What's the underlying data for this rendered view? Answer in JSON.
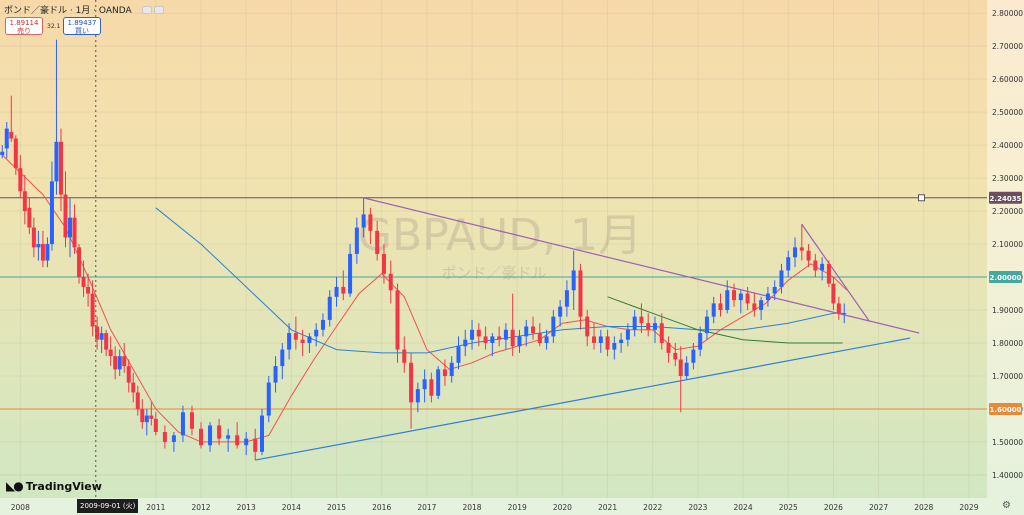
{
  "header": {
    "symbol_text": "ポンド／豪ドル · 1月 · OANDA",
    "sell": {
      "price": "1.89114",
      "label": "売り"
    },
    "buy": {
      "price": "1.89437",
      "label": "買い"
    },
    "spread": "32.1"
  },
  "logo": "TradingView",
  "crosshair_date": "2009-09-01 (火)",
  "watermark": {
    "main": "GBPAUD, 1月",
    "sub": "ポンド／豪ドル"
  },
  "colors": {
    "up": "#2962ff",
    "down": "#f23645",
    "ma_fast": "#ef5350",
    "ma_mid": "#2e7d32",
    "ma_slow": "#2f7fd6",
    "trend_purple": "#9c5fb5",
    "trend_blue": "#2f7fd6",
    "support_line": "#e8893a",
    "resistance_line": "#6b4f5f",
    "level_2_line": "#43a8a0"
  },
  "chart_data": {
    "type": "candlestick",
    "timeframe": "monthly",
    "ylim": [
      1.33,
      2.84
    ],
    "xlim": [
      2007.55,
      2029.4
    ],
    "y_ticks": [
      "1.40000",
      "1.50000",
      "1.60000",
      "1.70000",
      "1.80000",
      "1.90000",
      "2.00000",
      "2.10000",
      "2.20000",
      "2.30000",
      "2.40000",
      "2.50000",
      "2.60000",
      "2.70000",
      "2.80000"
    ],
    "x_ticks": [
      {
        "label": "2008",
        "x": 2008.0
      },
      {
        "label": "2011",
        "x": 2011.0
      },
      {
        "label": "2012",
        "x": 2012.0
      },
      {
        "label": "2013",
        "x": 2013.0
      },
      {
        "label": "2014",
        "x": 2014.0
      },
      {
        "label": "2015",
        "x": 2015.0
      },
      {
        "label": "2016",
        "x": 2016.0
      },
      {
        "label": "2017",
        "x": 2017.0
      },
      {
        "label": "2018",
        "x": 2018.0
      },
      {
        "label": "2019",
        "x": 2019.0
      },
      {
        "label": "2020",
        "x": 2020.0
      },
      {
        "label": "2021",
        "x": 2021.0
      },
      {
        "label": "2022",
        "x": 2022.0
      },
      {
        "label": "2023",
        "x": 2023.0
      },
      {
        "label": "2024",
        "x": 2024.0
      },
      {
        "label": "2025",
        "x": 2025.0
      },
      {
        "label": "2026",
        "x": 2026.0
      },
      {
        "label": "2027",
        "x": 2027.0
      },
      {
        "label": "2028",
        "x": 2028.0
      },
      {
        "label": "2029",
        "x": 2029.0
      }
    ],
    "crosshair_x": 2009.67,
    "horizontal_levels": [
      {
        "value": 2.24035,
        "label": "2.24035",
        "color": "#6b4f5f"
      },
      {
        "value": 2.0,
        "label": "2.00000",
        "color": "#43a8a0"
      },
      {
        "value": 1.6,
        "label": "1.60000",
        "color": "#e8893a"
      }
    ],
    "trend_lines": [
      {
        "name": "upper",
        "color": "#9c5fb5",
        "points": [
          [
            2015.6,
            2.24
          ],
          [
            2027.9,
            1.83
          ]
        ]
      },
      {
        "name": "lower",
        "color": "#2f7fd6",
        "points": [
          [
            2013.2,
            1.445
          ],
          [
            2027.7,
            1.815
          ]
        ]
      },
      {
        "name": "recent",
        "color": "#9c5fb5",
        "points": [
          [
            2025.3,
            2.16
          ],
          [
            2026.8,
            1.865
          ]
        ]
      }
    ],
    "moving_averages": [
      {
        "name": "fast",
        "color": "#ef5350",
        "points": [
          [
            2007.6,
            2.37
          ],
          [
            2008.5,
            2.25
          ],
          [
            2009.0,
            2.15
          ],
          [
            2009.5,
            2.0
          ],
          [
            2010.0,
            1.84
          ],
          [
            2010.5,
            1.72
          ],
          [
            2011.0,
            1.6
          ],
          [
            2011.5,
            1.53
          ],
          [
            2012.0,
            1.5
          ],
          [
            2012.5,
            1.5
          ],
          [
            2013.0,
            1.5
          ],
          [
            2013.5,
            1.52
          ],
          [
            2014.0,
            1.64
          ],
          [
            2014.5,
            1.75
          ],
          [
            2015.0,
            1.85
          ],
          [
            2015.5,
            1.95
          ],
          [
            2016.0,
            2.01
          ],
          [
            2016.5,
            1.94
          ],
          [
            2017.0,
            1.78
          ],
          [
            2017.5,
            1.72
          ],
          [
            2018.0,
            1.74
          ],
          [
            2018.5,
            1.77
          ],
          [
            2019.0,
            1.79
          ],
          [
            2019.5,
            1.81
          ],
          [
            2020.0,
            1.86
          ],
          [
            2020.5,
            1.87
          ],
          [
            2021.0,
            1.85
          ],
          [
            2021.5,
            1.84
          ],
          [
            2022.0,
            1.84
          ],
          [
            2022.5,
            1.78
          ],
          [
            2023.0,
            1.79
          ],
          [
            2023.5,
            1.84
          ],
          [
            2024.0,
            1.88
          ],
          [
            2024.5,
            1.92
          ],
          [
            2025.0,
            1.99
          ],
          [
            2025.5,
            2.04
          ],
          [
            2026.0,
            2.0
          ],
          [
            2026.3,
            1.96
          ]
        ]
      },
      {
        "name": "slow",
        "color": "#2f7fd6",
        "points": [
          [
            2011.0,
            2.21
          ],
          [
            2012.0,
            2.1
          ],
          [
            2013.0,
            1.97
          ],
          [
            2014.0,
            1.84
          ],
          [
            2015.0,
            1.78
          ],
          [
            2016.0,
            1.77
          ],
          [
            2017.0,
            1.77
          ],
          [
            2018.0,
            1.8
          ],
          [
            2019.0,
            1.82
          ],
          [
            2020.0,
            1.84
          ],
          [
            2021.0,
            1.85
          ],
          [
            2022.0,
            1.85
          ],
          [
            2023.0,
            1.84
          ],
          [
            2024.0,
            1.84
          ],
          [
            2025.0,
            1.86
          ],
          [
            2026.0,
            1.89
          ],
          [
            2026.2,
            1.89
          ]
        ]
      },
      {
        "name": "mid",
        "color": "#2e7d32",
        "points": [
          [
            2021.0,
            1.94
          ],
          [
            2022.0,
            1.89
          ],
          [
            2023.0,
            1.84
          ],
          [
            2024.0,
            1.81
          ],
          [
            2025.0,
            1.8
          ],
          [
            2026.0,
            1.8
          ],
          [
            2026.2,
            1.8
          ]
        ]
      }
    ],
    "candles": [
      [
        2007.6,
        2.37,
        2.4,
        2.36,
        2.38
      ],
      [
        2007.7,
        2.39,
        2.47,
        2.36,
        2.45
      ],
      [
        2007.8,
        2.44,
        2.55,
        2.41,
        2.42
      ],
      [
        2007.9,
        2.42,
        2.43,
        2.31,
        2.33
      ],
      [
        2008.0,
        2.33,
        2.37,
        2.24,
        2.26
      ],
      [
        2008.1,
        2.26,
        2.31,
        2.16,
        2.2
      ],
      [
        2008.2,
        2.21,
        2.24,
        2.13,
        2.15
      ],
      [
        2008.3,
        2.15,
        2.18,
        2.06,
        2.09
      ],
      [
        2008.4,
        2.09,
        2.14,
        2.05,
        2.1
      ],
      [
        2008.5,
        2.1,
        2.14,
        2.03,
        2.05
      ],
      [
        2008.6,
        2.05,
        2.12,
        2.03,
        2.1
      ],
      [
        2008.7,
        2.1,
        2.35,
        2.08,
        2.29
      ],
      [
        2008.8,
        2.29,
        2.72,
        2.25,
        2.41
      ],
      [
        2008.9,
        2.41,
        2.45,
        2.2,
        2.25
      ],
      [
        2009.0,
        2.25,
        2.32,
        2.09,
        2.12
      ],
      [
        2009.1,
        2.12,
        2.24,
        2.06,
        2.18
      ],
      [
        2009.2,
        2.18,
        2.22,
        2.07,
        2.09
      ],
      [
        2009.3,
        2.09,
        2.1,
        1.98,
        2.0
      ],
      [
        2009.4,
        2.0,
        2.05,
        1.94,
        1.97
      ],
      [
        2009.5,
        1.97,
        2.01,
        1.91,
        1.95
      ],
      [
        2009.6,
        1.95,
        1.99,
        1.82,
        1.85
      ],
      [
        2009.7,
        1.85,
        1.88,
        1.78,
        1.81
      ],
      [
        2009.8,
        1.81,
        1.85,
        1.77,
        1.83
      ],
      [
        2009.9,
        1.83,
        1.84,
        1.76,
        1.78
      ],
      [
        2010.0,
        1.78,
        1.82,
        1.73,
        1.76
      ],
      [
        2010.1,
        1.76,
        1.79,
        1.69,
        1.72
      ],
      [
        2010.2,
        1.72,
        1.78,
        1.7,
        1.76
      ],
      [
        2010.3,
        1.76,
        1.8,
        1.71,
        1.73
      ],
      [
        2010.4,
        1.73,
        1.75,
        1.65,
        1.68
      ],
      [
        2010.5,
        1.68,
        1.71,
        1.62,
        1.65
      ],
      [
        2010.6,
        1.65,
        1.67,
        1.58,
        1.6
      ],
      [
        2010.7,
        1.6,
        1.63,
        1.54,
        1.56
      ],
      [
        2010.8,
        1.56,
        1.6,
        1.52,
        1.58
      ],
      [
        2010.9,
        1.58,
        1.62,
        1.55,
        1.57
      ],
      [
        2011.0,
        1.57,
        1.59,
        1.52,
        1.53
      ],
      [
        2011.2,
        1.53,
        1.55,
        1.48,
        1.5
      ],
      [
        2011.4,
        1.5,
        1.53,
        1.47,
        1.52
      ],
      [
        2011.6,
        1.52,
        1.61,
        1.5,
        1.59
      ],
      [
        2011.8,
        1.59,
        1.61,
        1.52,
        1.54
      ],
      [
        2012.0,
        1.54,
        1.56,
        1.48,
        1.49
      ],
      [
        2012.2,
        1.49,
        1.56,
        1.47,
        1.55
      ],
      [
        2012.4,
        1.55,
        1.57,
        1.49,
        1.51
      ],
      [
        2012.6,
        1.51,
        1.54,
        1.47,
        1.52
      ],
      [
        2012.8,
        1.52,
        1.56,
        1.48,
        1.49
      ],
      [
        2013.0,
        1.49,
        1.53,
        1.46,
        1.51
      ],
      [
        2013.2,
        1.51,
        1.54,
        1.445,
        1.47
      ],
      [
        2013.35,
        1.47,
        1.6,
        1.46,
        1.58
      ],
      [
        2013.5,
        1.58,
        1.7,
        1.56,
        1.68
      ],
      [
        2013.65,
        1.68,
        1.76,
        1.65,
        1.73
      ],
      [
        2013.8,
        1.73,
        1.8,
        1.69,
        1.78
      ],
      [
        2013.95,
        1.78,
        1.86,
        1.75,
        1.83
      ],
      [
        2014.1,
        1.83,
        1.88,
        1.78,
        1.81
      ],
      [
        2014.25,
        1.81,
        1.84,
        1.76,
        1.8
      ],
      [
        2014.4,
        1.8,
        1.83,
        1.77,
        1.82
      ],
      [
        2014.55,
        1.82,
        1.86,
        1.79,
        1.84
      ],
      [
        2014.7,
        1.84,
        1.89,
        1.82,
        1.87
      ],
      [
        2014.85,
        1.87,
        1.96,
        1.85,
        1.94
      ],
      [
        2015.0,
        1.94,
        2.0,
        1.91,
        1.97
      ],
      [
        2015.15,
        1.97,
        2.02,
        1.93,
        1.95
      ],
      [
        2015.3,
        1.95,
        2.1,
        1.94,
        2.07
      ],
      [
        2015.45,
        2.07,
        2.18,
        2.04,
        2.15
      ],
      [
        2015.6,
        2.15,
        2.24,
        2.12,
        2.19
      ],
      [
        2015.75,
        2.19,
        2.21,
        2.1,
        2.14
      ],
      [
        2015.9,
        2.14,
        2.17,
        2.05,
        2.07
      ],
      [
        2016.05,
        2.07,
        2.1,
        1.98,
        2.01
      ],
      [
        2016.2,
        2.01,
        2.05,
        1.92,
        1.96
      ],
      [
        2016.35,
        1.96,
        1.98,
        1.74,
        1.78
      ],
      [
        2016.5,
        1.78,
        1.82,
        1.71,
        1.74
      ],
      [
        2016.65,
        1.74,
        1.77,
        1.54,
        1.62
      ],
      [
        2016.8,
        1.62,
        1.68,
        1.59,
        1.66
      ],
      [
        2016.95,
        1.66,
        1.72,
        1.62,
        1.69
      ],
      [
        2017.1,
        1.69,
        1.71,
        1.62,
        1.64
      ],
      [
        2017.25,
        1.64,
        1.73,
        1.63,
        1.72
      ],
      [
        2017.4,
        1.72,
        1.75,
        1.67,
        1.7
      ],
      [
        2017.55,
        1.7,
        1.76,
        1.68,
        1.74
      ],
      [
        2017.7,
        1.74,
        1.82,
        1.72,
        1.79
      ],
      [
        2017.85,
        1.79,
        1.84,
        1.76,
        1.81
      ],
      [
        2018.0,
        1.81,
        1.87,
        1.78,
        1.84
      ],
      [
        2018.15,
        1.84,
        1.86,
        1.79,
        1.82
      ],
      [
        2018.3,
        1.82,
        1.85,
        1.78,
        1.8
      ],
      [
        2018.45,
        1.8,
        1.83,
        1.76,
        1.82
      ],
      [
        2018.6,
        1.82,
        1.85,
        1.79,
        1.81
      ],
      [
        2018.75,
        1.81,
        1.86,
        1.78,
        1.84
      ],
      [
        2018.9,
        1.84,
        1.95,
        1.76,
        1.79
      ],
      [
        2019.05,
        1.79,
        1.84,
        1.77,
        1.82
      ],
      [
        2019.2,
        1.82,
        1.87,
        1.79,
        1.85
      ],
      [
        2019.35,
        1.85,
        1.88,
        1.81,
        1.83
      ],
      [
        2019.5,
        1.83,
        1.86,
        1.79,
        1.8
      ],
      [
        2019.65,
        1.8,
        1.84,
        1.78,
        1.82
      ],
      [
        2019.8,
        1.82,
        1.9,
        1.8,
        1.88
      ],
      [
        2019.95,
        1.88,
        1.93,
        1.85,
        1.91
      ],
      [
        2020.1,
        1.91,
        1.99,
        1.88,
        1.96
      ],
      [
        2020.25,
        1.96,
        2.08,
        1.9,
        2.02
      ],
      [
        2020.4,
        2.02,
        2.04,
        1.84,
        1.88
      ],
      [
        2020.55,
        1.88,
        1.9,
        1.79,
        1.82
      ],
      [
        2020.7,
        1.82,
        1.86,
        1.78,
        1.8
      ],
      [
        2020.85,
        1.8,
        1.84,
        1.77,
        1.82
      ],
      [
        2021.0,
        1.82,
        1.84,
        1.76,
        1.78
      ],
      [
        2021.15,
        1.78,
        1.82,
        1.75,
        1.8
      ],
      [
        2021.3,
        1.8,
        1.83,
        1.77,
        1.81
      ],
      [
        2021.45,
        1.81,
        1.86,
        1.79,
        1.84
      ],
      [
        2021.6,
        1.84,
        1.9,
        1.82,
        1.88
      ],
      [
        2021.75,
        1.88,
        1.92,
        1.83,
        1.86
      ],
      [
        2021.9,
        1.86,
        1.89,
        1.82,
        1.84
      ],
      [
        2022.05,
        1.84,
        1.88,
        1.8,
        1.86
      ],
      [
        2022.2,
        1.86,
        1.89,
        1.78,
        1.8
      ],
      [
        2022.35,
        1.8,
        1.82,
        1.74,
        1.77
      ],
      [
        2022.5,
        1.77,
        1.8,
        1.73,
        1.75
      ],
      [
        2022.62,
        1.75,
        1.79,
        1.59,
        1.7
      ],
      [
        2022.75,
        1.7,
        1.76,
        1.69,
        1.74
      ],
      [
        2022.9,
        1.74,
        1.8,
        1.72,
        1.78
      ],
      [
        2023.05,
        1.78,
        1.85,
        1.76,
        1.83
      ],
      [
        2023.2,
        1.83,
        1.9,
        1.81,
        1.88
      ],
      [
        2023.35,
        1.88,
        1.94,
        1.86,
        1.92
      ],
      [
        2023.5,
        1.92,
        1.95,
        1.88,
        1.9
      ],
      [
        2023.65,
        1.9,
        1.99,
        1.89,
        1.96
      ],
      [
        2023.8,
        1.96,
        1.98,
        1.91,
        1.93
      ],
      [
        2023.95,
        1.93,
        1.96,
        1.89,
        1.95
      ],
      [
        2024.1,
        1.95,
        1.97,
        1.9,
        1.92
      ],
      [
        2024.25,
        1.92,
        1.95,
        1.88,
        1.9
      ],
      [
        2024.4,
        1.9,
        1.94,
        1.87,
        1.93
      ],
      [
        2024.55,
        1.93,
        1.97,
        1.91,
        1.95
      ],
      [
        2024.7,
        1.95,
        1.99,
        1.93,
        1.97
      ],
      [
        2024.85,
        1.97,
        2.04,
        1.95,
        2.02
      ],
      [
        2025.0,
        2.02,
        2.08,
        2.0,
        2.06
      ],
      [
        2025.15,
        2.06,
        2.12,
        2.03,
        2.09
      ],
      [
        2025.3,
        2.09,
        2.16,
        2.05,
        2.08
      ],
      [
        2025.45,
        2.08,
        2.1,
        2.03,
        2.05
      ],
      [
        2025.6,
        2.05,
        2.07,
        2.0,
        2.02
      ],
      [
        2025.75,
        2.02,
        2.06,
        1.99,
        2.04
      ],
      [
        2025.9,
        2.04,
        2.05,
        1.97,
        1.98
      ],
      [
        2026.0,
        1.98,
        2.0,
        1.9,
        1.92
      ],
      [
        2026.12,
        1.92,
        1.94,
        1.87,
        1.89
      ],
      [
        2026.24,
        1.89,
        1.92,
        1.86,
        1.891
      ]
    ]
  }
}
